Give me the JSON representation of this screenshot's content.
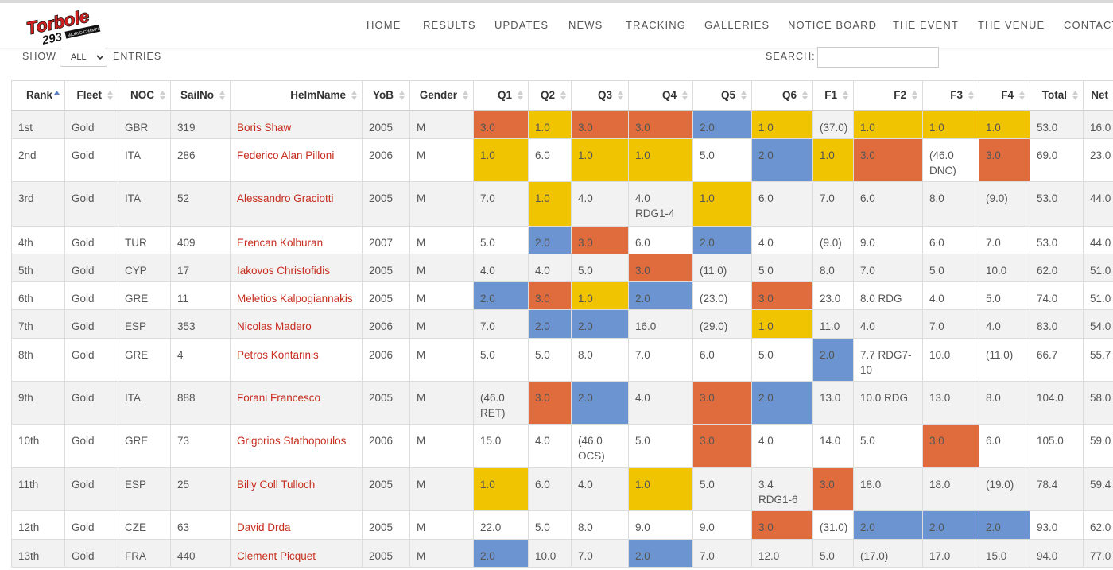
{
  "brand": {
    "logo_text": "Torbole 293",
    "logo_sub": "WORLD CHAMPIONSHIPS"
  },
  "nav": [
    "HOME",
    "RESULTS",
    "UPDATES",
    "NEWS",
    "TRACKING",
    "GALLERIES",
    "NOTICE BOARD",
    "THE EVENT",
    "THE VENUE",
    "CONTACT"
  ],
  "controls": {
    "show_label": "SHOW",
    "show_value": "ALL",
    "entries_label": "ENTRIES",
    "search_label": "SEARCH:",
    "search_value": ""
  },
  "colors": {
    "first": "#f0c400",
    "second": "#6b94d0",
    "third": "#e06c3d",
    "helm_link": "#c62d1f"
  },
  "table": {
    "columns": [
      "Rank",
      "Fleet",
      "NOC",
      "SailNo",
      "HelmName",
      "YoB",
      "Gender",
      "Q1",
      "Q2",
      "Q3",
      "Q4",
      "Q5",
      "Q6",
      "F1",
      "F2",
      "F3",
      "F4",
      "Total",
      "Net"
    ],
    "sorted_column": "Rank",
    "rows": [
      {
        "rank": "1st",
        "fleet": "Gold",
        "noc": "GBR",
        "sail": "319",
        "helm": "Boris Shaw",
        "yob": "2005",
        "gender": "M",
        "scores": [
          "3.0",
          "1.0",
          "3.0",
          "3.0",
          "2.0",
          "1.0",
          "(37.0)",
          "1.0",
          "1.0",
          "1.0"
        ],
        "total": "53.0",
        "net": "16.0"
      },
      {
        "rank": "2nd",
        "fleet": "Gold",
        "noc": "ITA",
        "sail": "286",
        "helm": "Federico Alan Pilloni",
        "yob": "2006",
        "gender": "M",
        "scores": [
          "1.0",
          "6.0",
          "1.0",
          "1.0",
          "5.0",
          "2.0",
          "1.0",
          "3.0",
          "(46.0 DNC)",
          "3.0"
        ],
        "total": "69.0",
        "net": "23.0"
      },
      {
        "rank": "3rd",
        "fleet": "Gold",
        "noc": "ITA",
        "sail": "52",
        "helm": "Alessandro Graciotti",
        "yob": "2005",
        "gender": "M",
        "scores": [
          "7.0",
          "1.0",
          "4.0",
          "4.0 RDG1-4",
          "1.0",
          "6.0",
          "7.0",
          "6.0",
          "8.0",
          "(9.0)"
        ],
        "total": "53.0",
        "net": "44.0"
      },
      {
        "rank": "4th",
        "fleet": "Gold",
        "noc": "TUR",
        "sail": "409",
        "helm": "Erencan Kolburan",
        "yob": "2007",
        "gender": "M",
        "scores": [
          "5.0",
          "2.0",
          "3.0",
          "6.0",
          "2.0",
          "4.0",
          "(9.0)",
          "9.0",
          "6.0",
          "7.0"
        ],
        "total": "53.0",
        "net": "44.0"
      },
      {
        "rank": "5th",
        "fleet": "Gold",
        "noc": "CYP",
        "sail": "17",
        "helm": "Iakovos Christofidis",
        "yob": "2005",
        "gender": "M",
        "scores": [
          "4.0",
          "4.0",
          "5.0",
          "3.0",
          "(11.0)",
          "5.0",
          "8.0",
          "7.0",
          "5.0",
          "10.0"
        ],
        "total": "62.0",
        "net": "51.0"
      },
      {
        "rank": "6th",
        "fleet": "Gold",
        "noc": "GRE",
        "sail": "11",
        "helm": "Meletios Kalpogiannakis",
        "yob": "2005",
        "gender": "M",
        "scores": [
          "2.0",
          "3.0",
          "1.0",
          "2.0",
          "(23.0)",
          "3.0",
          "23.0",
          "8.0 RDG",
          "4.0",
          "5.0"
        ],
        "total": "74.0",
        "net": "51.0"
      },
      {
        "rank": "7th",
        "fleet": "Gold",
        "noc": "ESP",
        "sail": "353",
        "helm": "Nicolas Madero",
        "yob": "2006",
        "gender": "M",
        "scores": [
          "7.0",
          "2.0",
          "2.0",
          "16.0",
          "(29.0)",
          "1.0",
          "11.0",
          "4.0",
          "7.0",
          "4.0"
        ],
        "total": "83.0",
        "net": "54.0"
      },
      {
        "rank": "8th",
        "fleet": "Gold",
        "noc": "GRE",
        "sail": "4",
        "helm": "Petros Kontarinis",
        "yob": "2006",
        "gender": "M",
        "scores": [
          "5.0",
          "5.0",
          "8.0",
          "7.0",
          "6.0",
          "5.0",
          "2.0",
          "7.7 RDG7-10",
          "10.0",
          "(11.0)"
        ],
        "total": "66.7",
        "net": "55.7"
      },
      {
        "rank": "9th",
        "fleet": "Gold",
        "noc": "ITA",
        "sail": "888",
        "helm": "Forani Francesco",
        "yob": "2005",
        "gender": "M",
        "scores": [
          "(46.0 RET)",
          "3.0",
          "2.0",
          "4.0",
          "3.0",
          "2.0",
          "13.0",
          "10.0 RDG",
          "13.0",
          "8.0"
        ],
        "total": "104.0",
        "net": "58.0"
      },
      {
        "rank": "10th",
        "fleet": "Gold",
        "noc": "GRE",
        "sail": "73",
        "helm": "Grigorios Stathopoulos",
        "yob": "2006",
        "gender": "M",
        "scores": [
          "15.0",
          "4.0",
          "(46.0 OCS)",
          "5.0",
          "3.0",
          "4.0",
          "14.0",
          "5.0",
          "3.0",
          "6.0"
        ],
        "total": "105.0",
        "net": "59.0"
      },
      {
        "rank": "11th",
        "fleet": "Gold",
        "noc": "ESP",
        "sail": "25",
        "helm": "Billy Coll Tulloch",
        "yob": "2005",
        "gender": "M",
        "scores": [
          "1.0",
          "6.0",
          "4.0",
          "1.0",
          "5.0",
          "3.4 RDG1-6",
          "3.0",
          "18.0",
          "18.0",
          "(19.0)"
        ],
        "total": "78.4",
        "net": "59.4"
      },
      {
        "rank": "12th",
        "fleet": "Gold",
        "noc": "CZE",
        "sail": "63",
        "helm": "David Drda",
        "yob": "2005",
        "gender": "M",
        "scores": [
          "22.0",
          "5.0",
          "8.0",
          "9.0",
          "9.0",
          "3.0",
          "(31.0)",
          "2.0",
          "2.0",
          "2.0"
        ],
        "total": "93.0",
        "net": "62.0"
      },
      {
        "rank": "13th",
        "fleet": "Gold",
        "noc": "FRA",
        "sail": "440",
        "helm": "Clement Picquet",
        "yob": "2005",
        "gender": "M",
        "scores": [
          "2.0",
          "10.0",
          "7.0",
          "2.0",
          "7.0",
          "12.0",
          "5.0",
          "(17.0)",
          "17.0",
          "15.0"
        ],
        "total": "94.0",
        "net": "77.0"
      }
    ]
  }
}
